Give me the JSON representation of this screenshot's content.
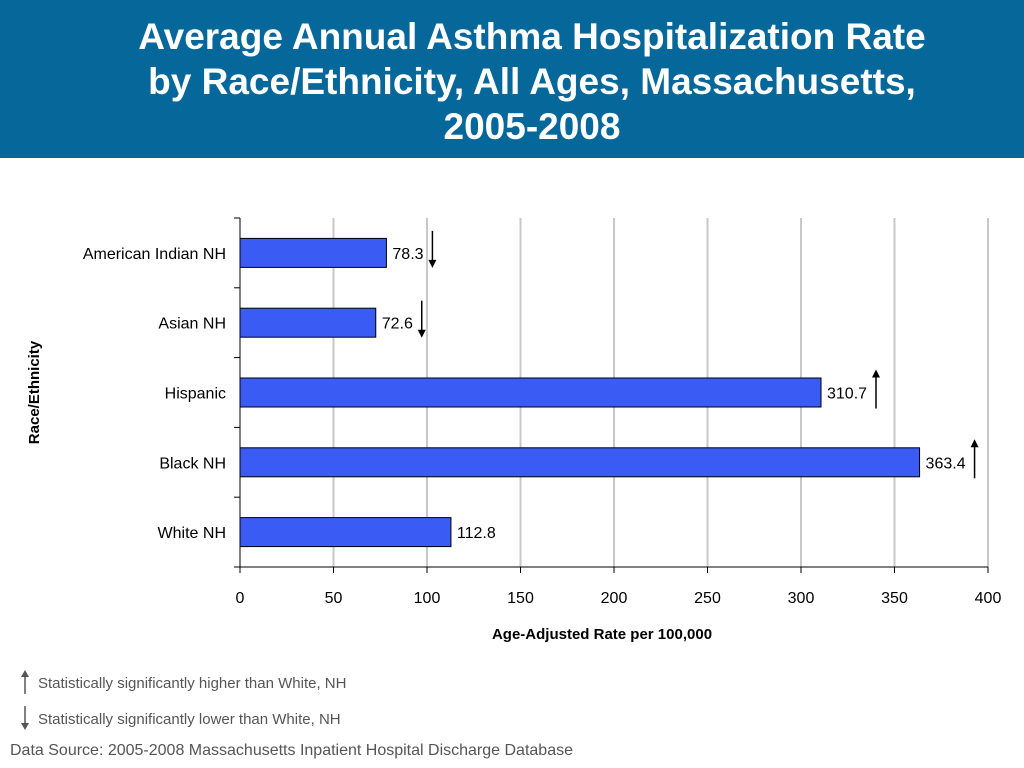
{
  "title": {
    "line1": "Average Annual Asthma Hospitalization Rate",
    "line2": "by Race/Ethnicity, All Ages, Massachusetts,",
    "line3": "2005-2008"
  },
  "colors": {
    "header": "#06679b",
    "bar": "#3b5bf5",
    "bar_edge": "#000000",
    "grid": "#c8c8c8",
    "text": "#000000",
    "footnote": "#555555"
  },
  "chart_data": {
    "type": "bar",
    "orientation": "horizontal",
    "categories": [
      "American Indian NH",
      "Asian NH",
      "Hispanic",
      "Black NH",
      "White NH"
    ],
    "values": [
      78.3,
      72.6,
      310.7,
      363.4,
      112.8
    ],
    "data_labels": [
      "78.3",
      "72.6",
      "310.7",
      "363.4",
      "112.8"
    ],
    "significance": [
      "lower",
      "lower",
      "higher",
      "higher",
      "none"
    ],
    "xlabel": "Age-Adjusted Rate per 100,000",
    "ylabel": "Race/Ethnicity",
    "xlim": [
      0,
      400
    ],
    "xticks": [
      0,
      50,
      100,
      150,
      200,
      250,
      300,
      350,
      400
    ],
    "grid": "vertical",
    "legend": "none"
  },
  "legend": {
    "higher": "Statistically significantly higher than White, NH",
    "lower": "Statistically significantly lower than White, NH"
  },
  "source": "Data Source: 2005-2008 Massachusetts Inpatient Hospital Discharge Database"
}
